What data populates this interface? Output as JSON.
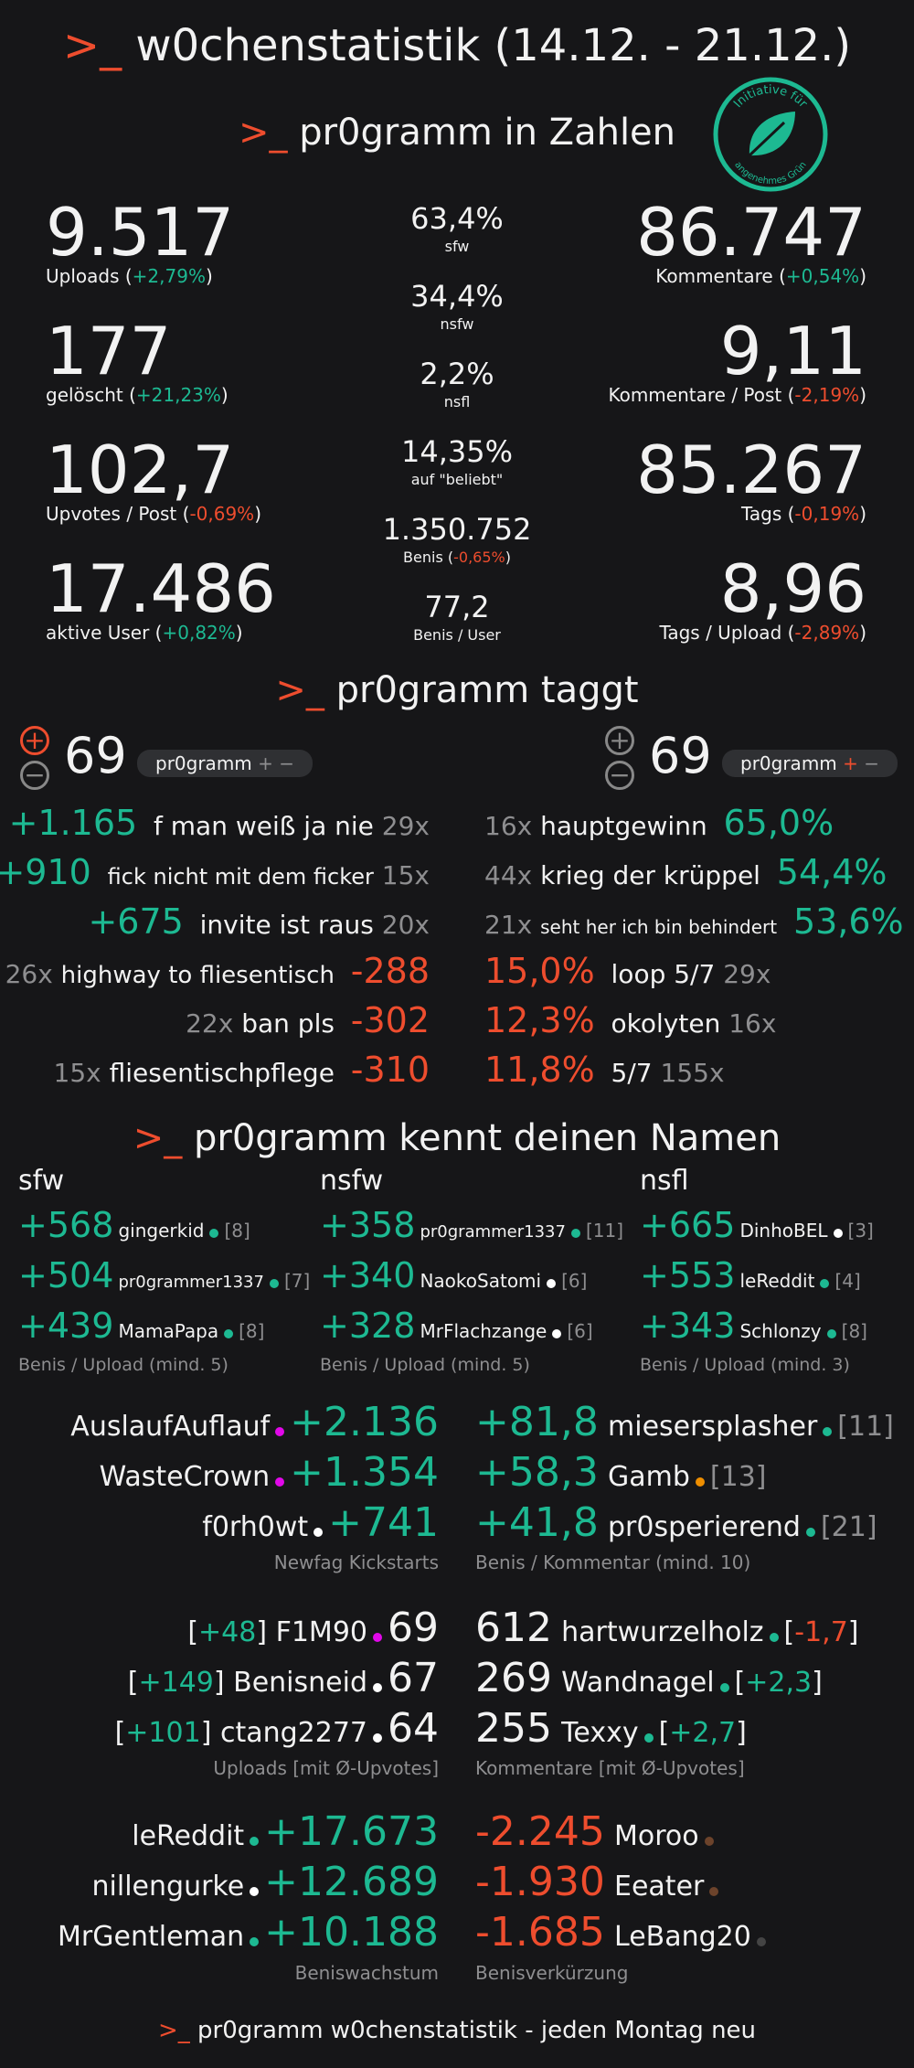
{
  "header": {
    "prompt": ">_",
    "title": "w0chenstatistik (14.12. - 21.12.)"
  },
  "section1": {
    "prompt": ">_",
    "title": "pr0gramm in Zahlen",
    "logo_text_top": "Initiative für",
    "logo_text_bottom": "angenehmes Grün",
    "left": [
      {
        "value": "9.517",
        "label": "Uploads (",
        "change": "+2,79%",
        "close": ")"
      },
      {
        "value": "177",
        "label": "gelöscht (",
        "change": "+21,23%",
        "close": ")"
      },
      {
        "value": "102,7",
        "label": "Upvotes / Post (",
        "change": "-0,69%",
        "close": ")"
      },
      {
        "value": "17.486",
        "label": "aktive User (",
        "change": "+0,82%",
        "close": ")"
      }
    ],
    "center": [
      {
        "value": "63,4%",
        "label": "sfw"
      },
      {
        "value": "34,4%",
        "label": "nsfw"
      },
      {
        "value": "2,2%",
        "label": "nsfl"
      },
      {
        "value": "14,35%",
        "label": "auf \"beliebt\""
      },
      {
        "value": "1.350.752",
        "label": "Benis (",
        "change": "-0,65%",
        "close": ")"
      },
      {
        "value": "77,2",
        "label": "Benis / User"
      }
    ],
    "right": [
      {
        "value": "86.747",
        "label": "Kommentare (",
        "change": "+0,54%",
        "close": ")"
      },
      {
        "value": "9,11",
        "label": "Kommentare / Post (",
        "change": "-2,19%",
        "close": ")"
      },
      {
        "value": "85.267",
        "label": "Tags (",
        "change": "-0,19%",
        "close": ")"
      },
      {
        "value": "8,96",
        "label": "Tags / Upload (",
        "change": "-2,89%",
        "close": ")"
      }
    ]
  },
  "section2": {
    "prompt": ">_",
    "title": "pr0gramm taggt",
    "left_vote": {
      "plus": "+",
      "minus": "−",
      "count": "69",
      "tag": "pr0gramm",
      "tag_plus": "+",
      "tag_minus": "−"
    },
    "right_vote": {
      "plus": "+",
      "minus": "−",
      "count": "69",
      "tag": "pr0gramm",
      "tag_plus": "+",
      "tag_minus": "−"
    },
    "left_top": [
      {
        "benis": "+1.165",
        "tag": "f man weiß ja nie",
        "count": "29x"
      },
      {
        "benis": "+910",
        "tag": "fick nicht mit dem ficker",
        "count": "15x"
      },
      {
        "benis": "+675",
        "tag": "invite ist raus",
        "count": "20x"
      }
    ],
    "left_bottom": [
      {
        "count": "26x",
        "tag": "highway to fliesentisch",
        "benis": "-288"
      },
      {
        "count": "22x",
        "tag": "ban pls",
        "benis": "-302"
      },
      {
        "count": "15x",
        "tag": "fliesentischpflege",
        "benis": "-310"
      }
    ],
    "right_top": [
      {
        "count": "16x",
        "tag": "hauptgewinn",
        "pct": "65,0%"
      },
      {
        "count": "44x",
        "tag": "krieg der krüppel",
        "pct": "54,4%"
      },
      {
        "count": "21x",
        "tag": "seht her ich bin behindert",
        "pct": "53,6%"
      }
    ],
    "right_bottom": [
      {
        "pct": "15,0%",
        "tag": "loop 5/7",
        "count": "29x"
      },
      {
        "pct": "12,3%",
        "tag": "okolyten",
        "count": "16x"
      },
      {
        "pct": "11,8%",
        "tag": "5/7",
        "count": "155x"
      }
    ]
  },
  "section3": {
    "prompt": ">_",
    "title": "pr0gramm kennt deinen Namen",
    "cols": [
      {
        "head": "sfw",
        "caption": "Benis / Upload (mind. 5)",
        "rows": [
          {
            "value": "+568",
            "name": "gingerkid",
            "dot": "green",
            "count": "[8]"
          },
          {
            "value": "+504",
            "name": "pr0grammer1337",
            "dot": "green",
            "count": "[7]"
          },
          {
            "value": "+439",
            "name": "MamaPapa",
            "dot": "green",
            "count": "[8]"
          }
        ]
      },
      {
        "head": "nsfw",
        "caption": "Benis / Upload (mind. 5)",
        "rows": [
          {
            "value": "+358",
            "name": "pr0grammer1337",
            "dot": "green",
            "count": "[11]"
          },
          {
            "value": "+340",
            "name": "NaokoSatomi",
            "dot": "white",
            "count": "[6]"
          },
          {
            "value": "+328",
            "name": "MrFlachzange",
            "dot": "white",
            "count": "[6]"
          }
        ]
      },
      {
        "head": "nsfl",
        "caption": "Benis / Upload (mind. 3)",
        "rows": [
          {
            "value": "+665",
            "name": "DinhoBEL",
            "dot": "white",
            "count": "[3]"
          },
          {
            "value": "+553",
            "name": "leReddit",
            "dot": "green",
            "count": "[4]"
          },
          {
            "value": "+343",
            "name": "Schlonzy",
            "dot": "green",
            "count": "[8]"
          }
        ]
      }
    ],
    "newfag": {
      "caption": "Newfag Kickstarts",
      "rows": [
        {
          "name": "AuslaufAuflauf",
          "dot": "pink",
          "value": "+2.136"
        },
        {
          "name": "WasteCrown",
          "dot": "pink",
          "value": "+1.354"
        },
        {
          "name": "f0rh0wt",
          "dot": "white",
          "value": "+741"
        }
      ]
    },
    "comment": {
      "caption": "Benis / Kommentar (mind. 10)",
      "rows": [
        {
          "value": "+81,8",
          "name": "miesersplasher",
          "dot": "green",
          "count": "[11]"
        },
        {
          "value": "+58,3",
          "name": "Gamb",
          "dot": "orange",
          "count": "[13]"
        },
        {
          "value": "+41,8",
          "name": "pr0sperierend",
          "dot": "green",
          "count": "[21]"
        }
      ]
    },
    "uploads": {
      "caption": "Uploads [mit Ø-Upvotes]",
      "rows": [
        {
          "avg": "+48",
          "name": "F1M90",
          "dot": "pink",
          "value": "69"
        },
        {
          "avg": "+149",
          "name": "Benisneid",
          "dot": "white",
          "value": "67"
        },
        {
          "avg": "+101",
          "name": "ctang2277",
          "dot": "white",
          "value": "64"
        }
      ]
    },
    "comments": {
      "caption": "Kommentare [mit Ø-Upvotes]",
      "rows": [
        {
          "value": "612",
          "name": "hartwurzelholz",
          "dot": "green",
          "avg": "-1,7",
          "sign": "neg"
        },
        {
          "value": "269",
          "name": "Wandnagel",
          "dot": "green",
          "avg": "+2,3",
          "sign": "pos"
        },
        {
          "value": "255",
          "name": "Texxy",
          "dot": "green",
          "avg": "+2,7",
          "sign": "pos"
        }
      ]
    },
    "growth": {
      "caption": "Beniswachstum",
      "rows": [
        {
          "name": "leReddit",
          "dot": "green",
          "value": "+17.673"
        },
        {
          "name": "nillengurke",
          "dot": "white",
          "value": "+12.689"
        },
        {
          "name": "MrGentleman",
          "dot": "green",
          "value": "+10.188"
        }
      ]
    },
    "shrink": {
      "caption": "Benisverkürzung",
      "rows": [
        {
          "value": "-2.245",
          "name": "Moroo",
          "dot": "brown"
        },
        {
          "value": "-1.930",
          "name": "Eeater",
          "dot": "brown"
        },
        {
          "value": "-1.685",
          "name": "LeBang20",
          "dot": "grey"
        }
      ]
    }
  },
  "footer": {
    "prompt": ">_",
    "text": "pr0gramm w0chenstatistik - jeden Montag neu"
  },
  "colors": {
    "accent": "#ee4d2e",
    "positive": "#1db992",
    "background": "#161618"
  }
}
